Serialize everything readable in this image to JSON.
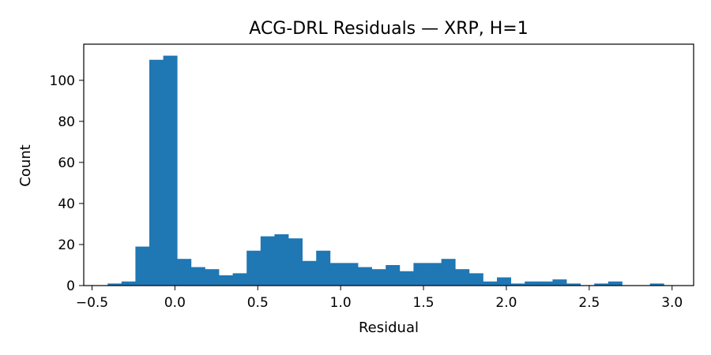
{
  "chart_data": {
    "type": "bar",
    "subtype": "histogram",
    "title": "ACG-DRL Residuals — XRP, H=1",
    "xlabel": "Residual",
    "ylabel": "Count",
    "xlim": [
      -0.55,
      3.13
    ],
    "ylim": [
      0,
      117.6
    ],
    "grid": false,
    "color": "#1f77b4",
    "bin_start": -0.406,
    "bin_width": 0.0839,
    "counts": [
      1,
      2,
      19,
      110,
      112,
      13,
      9,
      8,
      5,
      6,
      17,
      24,
      25,
      23,
      12,
      17,
      11,
      11,
      9,
      8,
      10,
      7,
      11,
      11,
      13,
      8,
      6,
      2,
      4,
      1,
      2,
      2,
      3,
      1,
      0,
      1,
      2,
      0,
      0,
      1
    ],
    "x_ticks": [
      -0.5,
      0.0,
      0.5,
      1.0,
      1.5,
      2.0,
      2.5,
      3.0
    ],
    "x_tick_labels": [
      "−0.5",
      "0.0",
      "0.5",
      "1.0",
      "1.5",
      "2.0",
      "2.5",
      "3.0"
    ],
    "y_ticks": [
      0,
      20,
      40,
      60,
      80,
      100
    ],
    "y_tick_labels": [
      "0",
      "20",
      "40",
      "60",
      "80",
      "100"
    ]
  }
}
